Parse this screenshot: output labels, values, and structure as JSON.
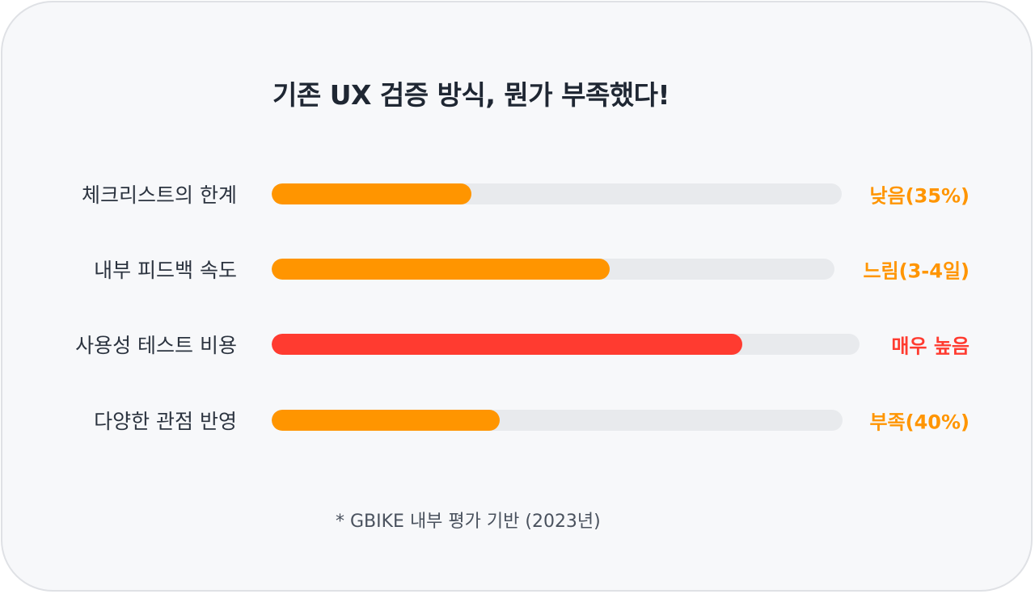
{
  "title": "기존 UX 검증 방식, 뭔가 부족했다!",
  "footnote": "* GBIKE 내부 평가 기반 (2023년)",
  "colors": {
    "orange": "#ff9500",
    "red": "#ff3b30",
    "track": "#e8eaed",
    "label_text": "#2b333f",
    "background": "#f7f8fa"
  },
  "chart_data": {
    "type": "bar",
    "orientation": "horizontal",
    "categories": [
      "체크리스트의 한계",
      "내부 피드백 속도",
      "사용성 테스트 비용",
      "다양한 관점 반영"
    ],
    "values": [
      35,
      60,
      80,
      40
    ],
    "value_labels": [
      "낮음(35%)",
      "느림(3-4일)",
      "매우 높음",
      "부족(40%)"
    ],
    "bar_colors": [
      "#ff9500",
      "#ff9500",
      "#ff3b30",
      "#ff9500"
    ],
    "xlim": [
      0,
      100
    ],
    "grid": false,
    "legend": false
  }
}
